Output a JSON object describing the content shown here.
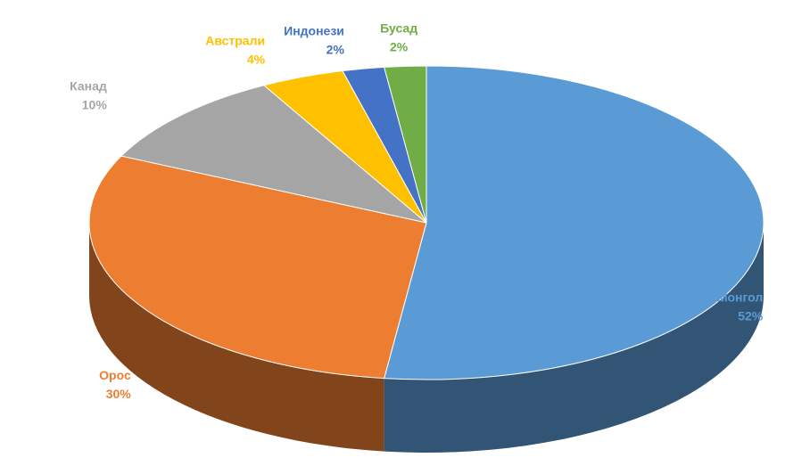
{
  "chart_data": {
    "type": "pie",
    "categories": [
      "Монгол",
      "Орос",
      "Канад",
      "Австрали",
      "Индонези",
      "Бусад"
    ],
    "values": [
      52,
      30,
      10,
      4,
      2,
      2
    ],
    "value_labels": [
      "52%",
      "30%",
      "10%",
      "4%",
      "2%",
      "2%"
    ],
    "colors": [
      "#5b9bd5",
      "#ed7d31",
      "#a5a5a5",
      "#ffc000",
      "#4472c4",
      "#70ad47"
    ]
  }
}
